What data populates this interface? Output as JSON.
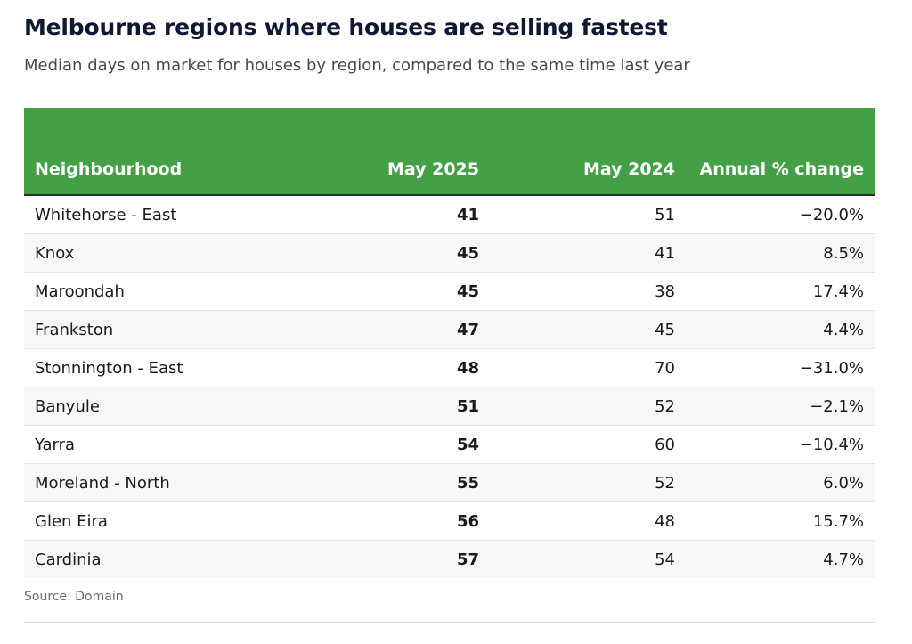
{
  "title": "Melbourne regions where houses are selling fastest",
  "subtitle": "Median days on market for houses by region, compared to the same time last year",
  "source": "Source: Domain",
  "colors": {
    "header_bg": "#43a047",
    "header_text": "#ffffff",
    "title": "#0f1733"
  },
  "chart_data": {
    "type": "table",
    "columns": [
      "Neighbourhood",
      "May 2025",
      "May 2024",
      "Annual % change"
    ],
    "rows": [
      [
        "Whitehorse - East",
        "41",
        "51",
        "−20.0%"
      ],
      [
        "Knox",
        "45",
        "41",
        "8.5%"
      ],
      [
        "Maroondah",
        "45",
        "38",
        "17.4%"
      ],
      [
        "Frankston",
        "47",
        "45",
        "4.4%"
      ],
      [
        "Stonnington - East",
        "48",
        "70",
        "−31.0%"
      ],
      [
        "Banyule",
        "51",
        "52",
        "−2.1%"
      ],
      [
        "Yarra",
        "54",
        "60",
        "−10.4%"
      ],
      [
        "Moreland - North",
        "55",
        "52",
        "6.0%"
      ],
      [
        "Glen Eira",
        "56",
        "48",
        "15.7%"
      ],
      [
        "Cardinia",
        "57",
        "54",
        "4.7%"
      ]
    ]
  }
}
